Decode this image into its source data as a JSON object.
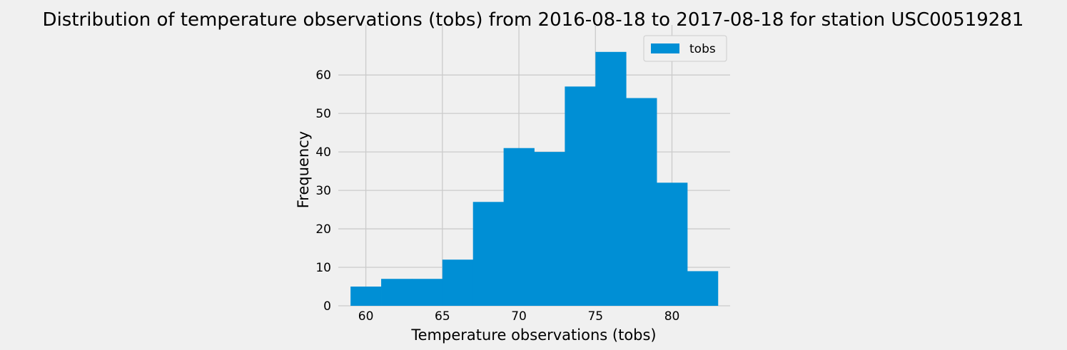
{
  "chart_data": {
    "type": "bar",
    "subtype": "histogram",
    "title": "Distribution of temperature observations (tobs) from 2016-08-18 to 2017-08-18 for station USC00519281",
    "xlabel": "Temperature observations (tobs)",
    "ylabel": "Frequency",
    "bin_edges": [
      59,
      61,
      63,
      65,
      67,
      69,
      71,
      73,
      75,
      77,
      79,
      81,
      83
    ],
    "series": [
      {
        "name": "tobs",
        "color": "#008fd5",
        "values": [
          5,
          7,
          7,
          12,
          27,
          41,
          40,
          57,
          66,
          54,
          32,
          9
        ]
      }
    ],
    "xlim": [
      58.2,
      83.8
    ],
    "ylim": [
      0,
      69.3
    ],
    "xticks": [
      60,
      65,
      70,
      75,
      80
    ],
    "yticks": [
      0,
      10,
      20,
      30,
      40,
      50,
      60
    ],
    "grid": true,
    "legend": {
      "placement": "upper-right",
      "entries": [
        "tobs"
      ]
    },
    "colors": {
      "background": "#f0f0f0",
      "grid": "#cbcbcb",
      "bar": "#008fd5"
    }
  }
}
